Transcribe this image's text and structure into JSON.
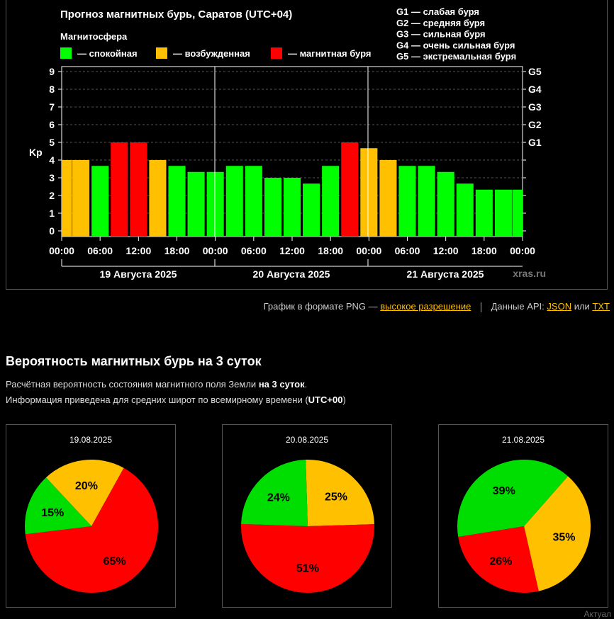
{
  "chart": {
    "title": "Прогноз магнитных бурь, Саратов (UTC+04)",
    "legend_title": "Магнитосфера",
    "legend": [
      {
        "label": "— спокойная",
        "color": "#00ff00"
      },
      {
        "label": "— возбужденная",
        "color": "#ffc000"
      },
      {
        "label": "— магнитная буря",
        "color": "#ff0000"
      }
    ],
    "g_scale": [
      "G1 — слабая буря",
      "G2 — средняя буря",
      "G3 — сильная буря",
      "G4 — очень сильная буря",
      "G5 — экстремальная буря"
    ],
    "watermark": "xras.ru"
  },
  "chart_data": [
    {
      "type": "bar",
      "ylabel": "Kp",
      "ylim": [
        0,
        9
      ],
      "yticks": [
        "0",
        "1",
        "2",
        "3",
        "4",
        "5",
        "6",
        "7",
        "8",
        "9"
      ],
      "right_ticks": [
        "G1",
        "G2",
        "G3",
        "G4",
        "G5"
      ],
      "xticks": [
        "00:00",
        "06:00",
        "12:00",
        "18:00",
        "00:00",
        "06:00",
        "12:00",
        "18:00",
        "00:00",
        "06:00",
        "12:00",
        "18:00",
        "00:00"
      ],
      "days": [
        "19 Августа 2025",
        "20 Августа 2025",
        "21 Августа 2025"
      ],
      "grid": true,
      "values": [
        4,
        4,
        3.67,
        5,
        5,
        4,
        3.67,
        3.33,
        3.33,
        3.67,
        3.67,
        3,
        3,
        2.67,
        3.67,
        5,
        4.67,
        4,
        3.67,
        3.67,
        3.33,
        2.67,
        2.33,
        2.33,
        2.33
      ],
      "colors": {
        "quiet": "#00ff00",
        "active": "#ffc000",
        "storm": "#ff0000"
      }
    },
    {
      "type": "pie",
      "title": "19.08.2025",
      "slices": [
        {
          "value": 20,
          "label": "20%",
          "color": "#ffc000"
        },
        {
          "value": 65,
          "label": "65%",
          "color": "#ff0000"
        },
        {
          "value": 15,
          "label": "15%",
          "color": "#00dd00"
        }
      ]
    },
    {
      "type": "pie",
      "title": "20.08.2025",
      "slices": [
        {
          "value": 25,
          "label": "25%",
          "color": "#ffc000"
        },
        {
          "value": 51,
          "label": "51%",
          "color": "#ff0000"
        },
        {
          "value": 24,
          "label": "24%",
          "color": "#00dd00"
        }
      ]
    },
    {
      "type": "pie",
      "title": "21.08.2025",
      "slices": [
        {
          "value": 35,
          "label": "35%",
          "color": "#ffc000"
        },
        {
          "value": 26,
          "label": "26%",
          "color": "#ff0000"
        },
        {
          "value": 39,
          "label": "39%",
          "color": "#00dd00"
        }
      ]
    }
  ],
  "links": {
    "png_text": "График в формате PNG —",
    "png_link": "высокое разрешение",
    "api_text": "Данные API:",
    "json": "JSON",
    "or": "или",
    "txt": "TXT"
  },
  "section": {
    "title": "Вероятность магнитных бурь на 3 суток",
    "desc1_pre": "Расчётная вероятность состояния магнитного поля Земли",
    "desc1_bold": "на 3 суток",
    "desc1_post": ".",
    "desc2_pre": "Информация приведена для средних широт по всемирному времени (",
    "desc2_bold": "UTC+00",
    "desc2_post": ")"
  },
  "partial_text": "Актуал"
}
